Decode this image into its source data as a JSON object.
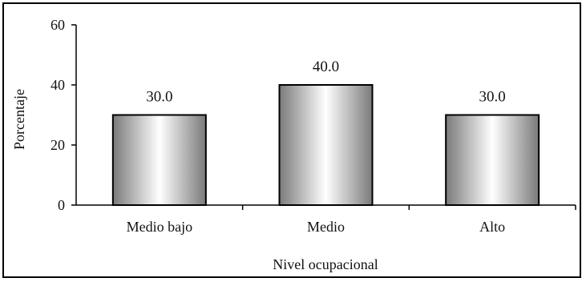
{
  "chart_data": {
    "type": "bar",
    "title": "",
    "xlabel": "Nivel ocupacional",
    "ylabel": "Porcentaje",
    "categories": [
      "Medio bajo",
      "Medio",
      "Alto"
    ],
    "values": [
      30.0,
      40.0,
      30.0
    ],
    "value_labels": [
      "30.0",
      "40.0",
      "30.0"
    ],
    "ylim": [
      0,
      60
    ],
    "yticks": [
      0,
      20,
      40,
      60
    ],
    "grid": false,
    "bar_fill": "gray-white-gray gradient",
    "colors": {
      "bar_dark": "#7a7a7a",
      "bar_light": "#ffffff",
      "border": "#000000"
    }
  }
}
